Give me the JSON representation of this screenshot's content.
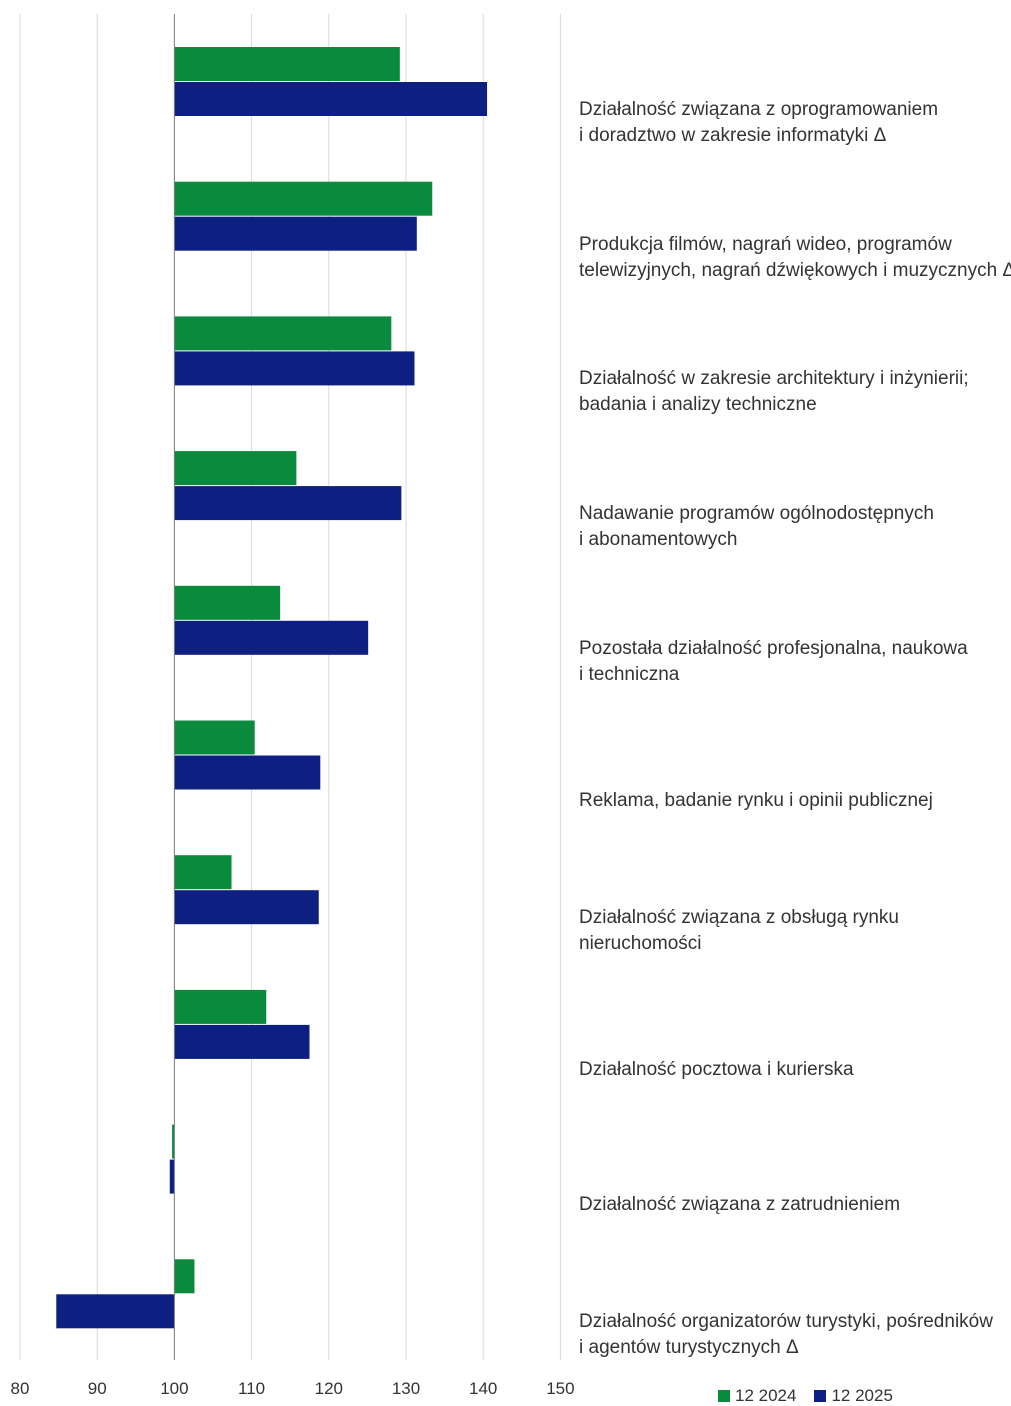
{
  "chart_data": {
    "type": "bar",
    "orientation": "horizontal",
    "baseline": 100,
    "xlim": [
      80,
      150
    ],
    "xticks": [
      "80",
      "90",
      "100",
      "110",
      "120",
      "130",
      "140",
      "150"
    ],
    "grid": true,
    "legend_position": "bottom-right",
    "categories": [
      [
        "Działalność związana z oprogramowaniem",
        "i doradztwo w zakresie informatyki Δ"
      ],
      [
        "Produkcja filmów, nagrań wideo, programów",
        "telewizyjnych, nagrań dźwiękowych i muzycznych Δ"
      ],
      [
        "Działalność w zakresie architektury i inżynierii;",
        "badania i analizy techniczne"
      ],
      [
        "Nadawanie programów ogólnodostępnych",
        "i abonamentowych"
      ],
      [
        "Pozostała działalność profesjonalna, naukowa",
        "i techniczna"
      ],
      [
        "Reklama, badanie rynku i opinii publicznej"
      ],
      [
        "Działalność związana z obsługą rynku",
        "nieruchomości"
      ],
      [
        "Działalność pocztowa i kurierska"
      ],
      [
        "Działalność związana z zatrudnieniem"
      ],
      [
        "Działalność organizatorów turystyki, pośredników",
        "i agentów turystycznych Δ"
      ]
    ],
    "series": [
      {
        "name": "12 2024",
        "color": "#0a8a3c",
        "values": [
          129.2,
          133.4,
          128.1,
          115.8,
          113.7,
          110.4,
          107.4,
          111.9,
          99.7,
          102.6
        ]
      },
      {
        "name": "12 2025",
        "color": "#0d1f80",
        "values": [
          140.5,
          131.4,
          131.1,
          129.4,
          125.1,
          118.9,
          118.7,
          117.5,
          99.4,
          84.7
        ]
      }
    ]
  }
}
